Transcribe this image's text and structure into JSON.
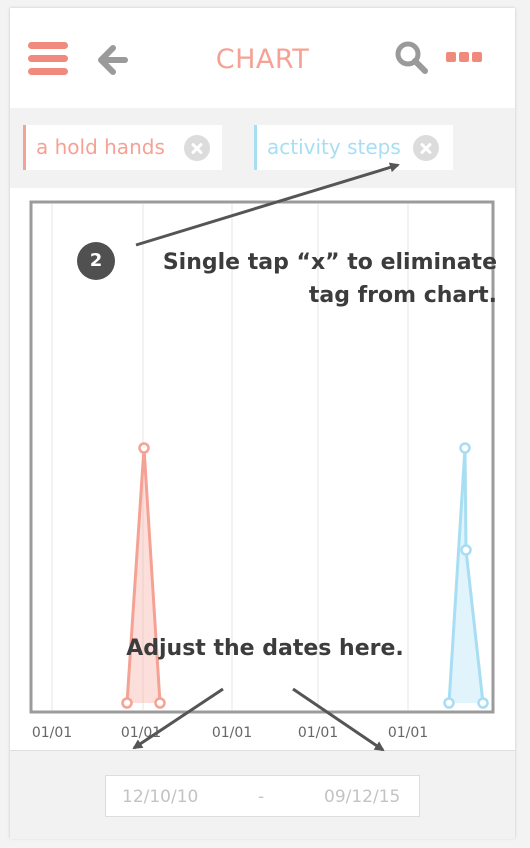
{
  "header": {
    "title": "CHART",
    "icons": [
      "hamburger-menu-icon",
      "back-arrow-icon",
      "search-icon",
      "more-dots-icon"
    ],
    "accent_color": "#f08a7c"
  },
  "tags": [
    {
      "label": "a hold hands",
      "color": "#f5a295"
    },
    {
      "label": "activity steps",
      "color": "#a8def3"
    }
  ],
  "chart_data": {
    "type": "area",
    "x_tick_labels": [
      "01/01",
      "01/01",
      "01/01",
      "01/01",
      "01/01"
    ],
    "series": [
      {
        "name": "a hold hands",
        "color": "#f5a295",
        "points": [
          [
            0,
            0
          ],
          [
            1,
            1
          ],
          [
            2,
            0
          ]
        ]
      },
      {
        "name": "activity steps",
        "color": "#a8def3",
        "points": [
          [
            0,
            0
          ],
          [
            1,
            1
          ],
          [
            2,
            0.6
          ],
          [
            3,
            0
          ]
        ]
      }
    ],
    "grid": true
  },
  "date_range": {
    "start": "12/10/10",
    "separator": "-",
    "end": "09/12/15"
  },
  "annotations": {
    "step_number": "2",
    "tap_hint_line1": "Single tap “x” to eliminate",
    "tap_hint_line2": "tag from chart.",
    "dates_hint": "Adjust the dates here."
  }
}
